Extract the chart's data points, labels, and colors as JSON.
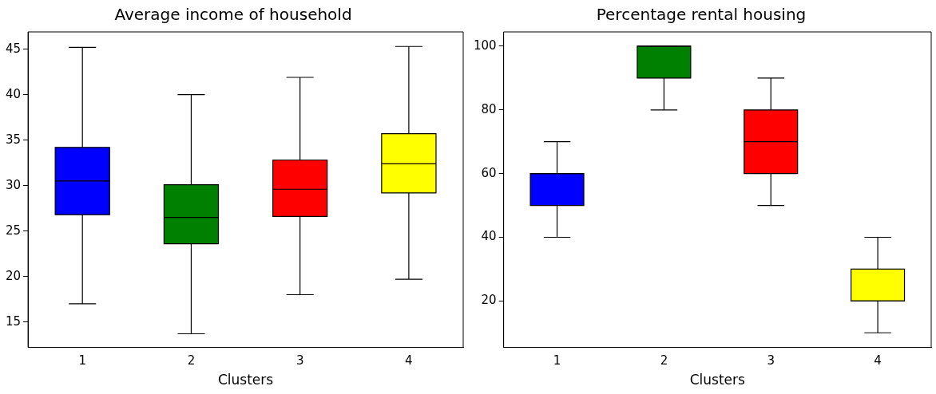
{
  "chart_data": [
    {
      "type": "box",
      "title": "Average income of household",
      "xlabel": "Clusters",
      "categories": [
        "1",
        "2",
        "3",
        "4"
      ],
      "colors": [
        "#0000ff",
        "#008000",
        "#ff0000",
        "#ffff00"
      ],
      "boxes": [
        {
          "low": 17.0,
          "q1": 26.8,
          "median": 30.5,
          "q3": 34.2,
          "high": 45.2
        },
        {
          "low": 13.7,
          "q1": 23.6,
          "median": 26.5,
          "q3": 30.1,
          "high": 40.0
        },
        {
          "low": 18.0,
          "q1": 26.6,
          "median": 29.6,
          "q3": 32.8,
          "high": 41.9
        },
        {
          "low": 19.7,
          "q1": 29.2,
          "median": 32.4,
          "q3": 35.7,
          "high": 45.3
        }
      ],
      "ylim": [
        12.2,
        46.9
      ],
      "yticks": [
        15,
        20,
        25,
        30,
        35,
        40,
        45
      ],
      "grid": false,
      "legend": false
    },
    {
      "type": "box",
      "title": "Percentage rental housing",
      "xlabel": "Clusters",
      "categories": [
        "1",
        "2",
        "3",
        "4"
      ],
      "colors": [
        "#0000ff",
        "#008000",
        "#ff0000",
        "#ffff00"
      ],
      "boxes": [
        {
          "low": 40,
          "q1": 50,
          "median": 60,
          "q3": 60,
          "high": 70
        },
        {
          "low": 80,
          "q1": 90,
          "median": 100,
          "q3": 100,
          "high": 100
        },
        {
          "low": 50,
          "q1": 60,
          "median": 70,
          "q3": 80,
          "high": 90
        },
        {
          "low": 10,
          "q1": 20,
          "median": 20,
          "q3": 30,
          "high": 40
        }
      ],
      "ylim": [
        5.4,
        104.5
      ],
      "yticks": [
        20,
        40,
        60,
        80,
        100
      ],
      "grid": false,
      "legend": false
    }
  ]
}
